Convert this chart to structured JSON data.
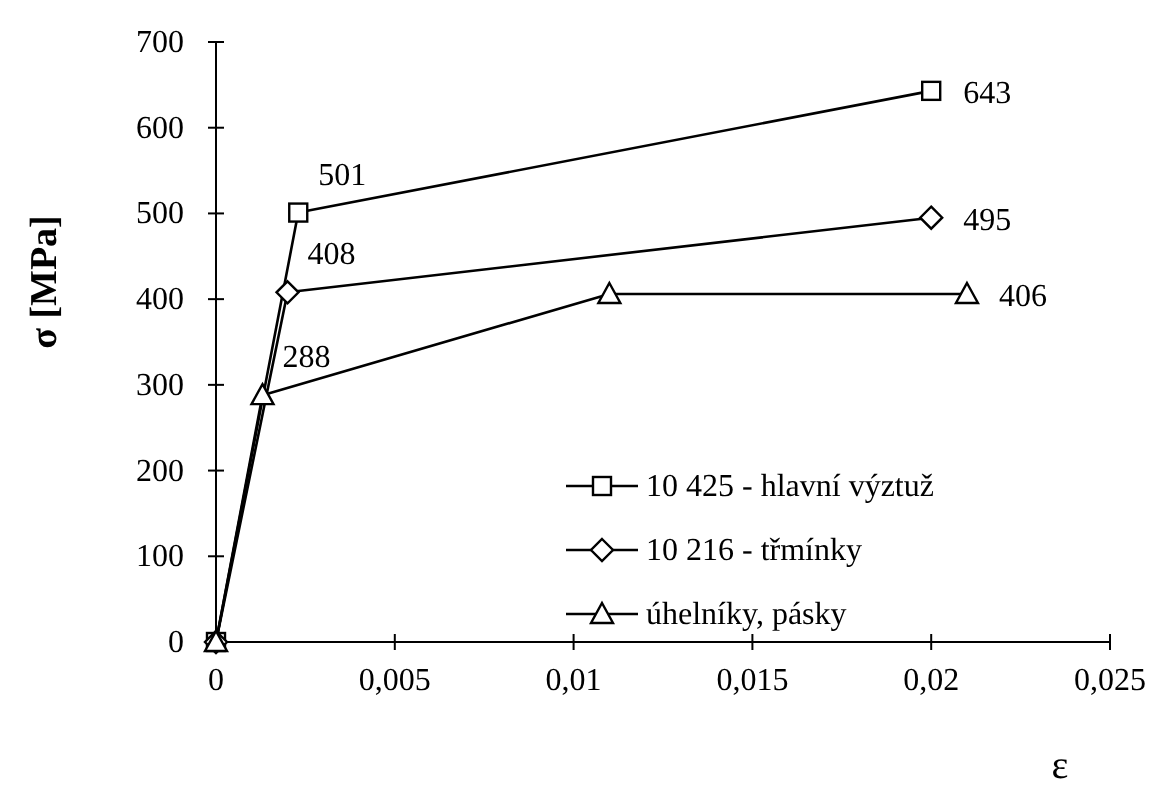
{
  "chart_data": {
    "type": "line",
    "xlabel": "ε",
    "ylabel": "σ [MPa]",
    "xlim": [
      0,
      0.025
    ],
    "xticks": [
      {
        "value": 0,
        "label": "0"
      },
      {
        "value": 0.005,
        "label": "0,005"
      },
      {
        "value": 0.01,
        "label": "0,01"
      },
      {
        "value": 0.015,
        "label": "0,015"
      },
      {
        "value": 0.02,
        "label": "0,02"
      },
      {
        "value": 0.025,
        "label": "0,025"
      }
    ],
    "ylim": [
      0,
      700
    ],
    "yticks": [
      0,
      100,
      200,
      300,
      400,
      500,
      600,
      700
    ],
    "grid": false,
    "legend": "bottom right",
    "line_style": "solid",
    "series": [
      {
        "name": "10 425 - hlavní výztuž",
        "color": "#000000",
        "marker": "square",
        "x": [
          0,
          0.0023,
          0.02
        ],
        "values": [
          0,
          501,
          643
        ],
        "value_labels": [
          null,
          "501",
          "643"
        ]
      },
      {
        "name": "10 216 - třmínky",
        "color": "#000000",
        "marker": "diamond",
        "x": [
          0,
          0.002,
          0.02
        ],
        "values": [
          0,
          408,
          495
        ],
        "value_labels": [
          null,
          "408",
          "495"
        ]
      },
      {
        "name": "úhelníky, pásky",
        "color": "#000000",
        "marker": "triangle",
        "x": [
          0,
          0.0013,
          0.011,
          0.021
        ],
        "values": [
          0,
          288,
          406,
          406
        ],
        "value_labels": [
          null,
          "288",
          null,
          "406"
        ]
      }
    ]
  }
}
